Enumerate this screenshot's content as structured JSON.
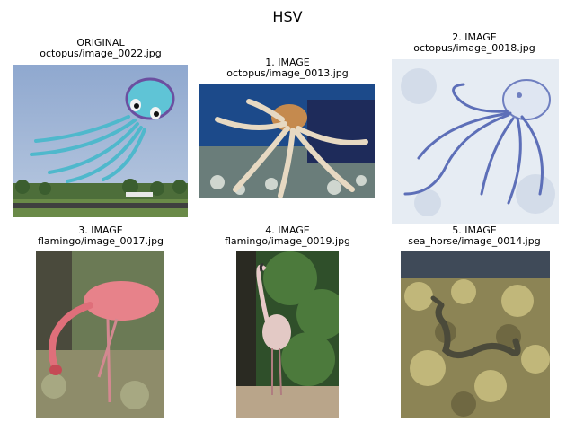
{
  "figure": {
    "title": "HSV"
  },
  "panels": [
    {
      "line1": "ORIGINAL",
      "line2": "octopus/image_0022.jpg",
      "icon": "octopus-kite-photo"
    },
    {
      "line1": "1. IMAGE",
      "line2": "octopus/image_0013.jpg",
      "icon": "octopus-underwater-photo"
    },
    {
      "line1": "2. IMAGE",
      "line2": "octopus/image_0018.jpg",
      "icon": "octopus-drawing-photo"
    },
    {
      "line1": "3. IMAGE",
      "line2": "flamingo/image_0017.jpg",
      "icon": "flamingo-photo"
    },
    {
      "line1": "4. IMAGE",
      "line2": "flamingo/image_0019.jpg",
      "icon": "flamingo-photo"
    },
    {
      "line1": "5. IMAGE",
      "line2": "sea_horse/image_0014.jpg",
      "icon": "sea-horse-photo"
    }
  ]
}
